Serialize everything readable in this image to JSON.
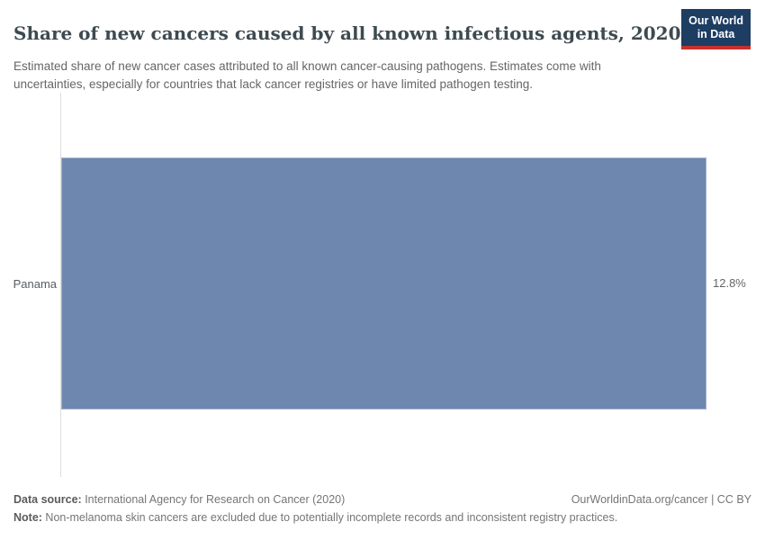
{
  "header": {
    "title": "Share of new cancers caused by all known infectious agents, 2020",
    "subtitle": "Estimated share of new cancer cases attributed to all known cancer-causing pathogens. Estimates come with uncertainties, especially for countries that lack cancer registries or have limited pathogen testing."
  },
  "logo": {
    "line1": "Our World",
    "line2": "in Data"
  },
  "chart_data": {
    "type": "bar",
    "orientation": "horizontal",
    "title": "Share of new cancers caused by all known infectious agents, 2020",
    "categories": [
      "Panama"
    ],
    "values": [
      12.8
    ],
    "value_labels": [
      "12.8%"
    ],
    "xlabel": "",
    "ylabel": "",
    "xlim": [
      0,
      12.8
    ],
    "grid": false,
    "legend": "none",
    "bar_color": "#6e87ae"
  },
  "footer": {
    "data_source_label": "Data source:",
    "data_source_text": " International Agency for Research on Cancer (2020)",
    "rights": "OurWorldinData.org/cancer | CC BY",
    "note_label": "Note:",
    "note_text": " Non-melanoma skin cancers are excluded due to potentially incomplete records and inconsistent registry practices."
  },
  "colors": {
    "logo_bg": "#1d3d63",
    "logo_underline": "#c8302e",
    "bar": "#6e87ae",
    "axis_line": "#dddddd",
    "title_text": "#3d4a50",
    "subtitle_text": "#666666"
  }
}
